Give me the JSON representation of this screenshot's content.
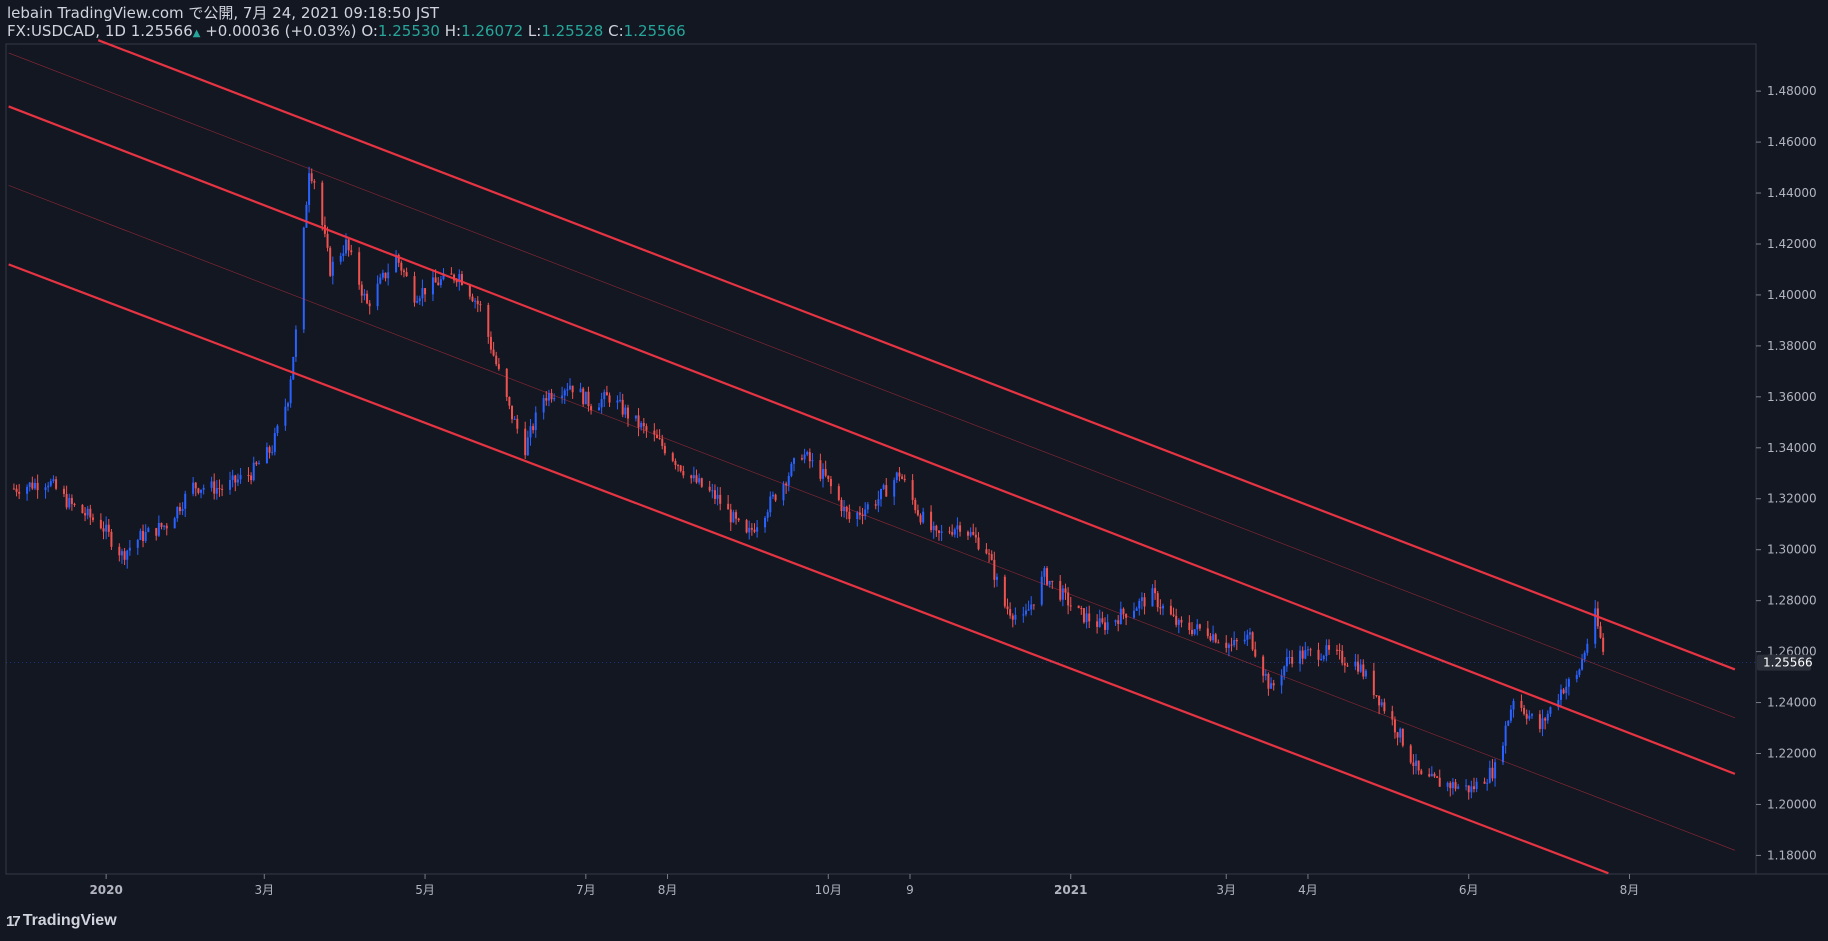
{
  "header": {
    "publish_line": "lebain TradingView.com で公開, 7月 24, 2021 09:18:50 JST",
    "symbol": "FX:USDCAD, 1D",
    "last": "1.25566",
    "change_arrow": "▲",
    "change": "+0.00036 (+0.03%)",
    "o_label": "O:",
    "o_value": "1.25530",
    "h_label": "H:",
    "h_value": "1.26072",
    "l_label": "L:",
    "l_value": "1.25528",
    "c_label": "C:",
    "c_value": "1.25566"
  },
  "footer": {
    "logo_text": "TradingView",
    "logo_mark": "17"
  },
  "colors": {
    "background": "#131722",
    "up_candle": "#2962ff",
    "down_candle": "#ef5350",
    "channel": "#f23645",
    "text": "#d1d4dc",
    "up_text": "#26a69a"
  },
  "chart_data": {
    "type": "candlestick",
    "symbol": "FX:USDCAD",
    "interval": "1D",
    "y_ticks": [
      "1.48000",
      "1.46000",
      "1.44000",
      "1.42000",
      "1.40000",
      "1.38000",
      "1.36000",
      "1.34000",
      "1.32000",
      "1.30000",
      "1.28000",
      "1.26000",
      "1.24000",
      "1.22000",
      "1.20000",
      "1.18000"
    ],
    "y_range": [
      1.1727,
      1.4985
    ],
    "x_ticks": [
      "2020",
      "3月",
      "5月",
      "7月",
      "8月",
      "10月",
      "9",
      "2021",
      "3月",
      "4月",
      "6月",
      "8月"
    ],
    "price_label": "1.25566",
    "series": [
      {
        "name": "close_path",
        "points": [
          [
            "2019-11-27",
            1.324
          ],
          [
            "2019-12-10",
            1.327
          ],
          [
            "2019-12-18",
            1.318
          ],
          [
            "2019-12-30",
            1.31
          ],
          [
            "2020-01-07",
            1.298
          ],
          [
            "2020-01-14",
            1.305
          ],
          [
            "2020-01-24",
            1.31
          ],
          [
            "2020-02-03",
            1.325
          ],
          [
            "2020-02-14",
            1.324
          ],
          [
            "2020-02-25",
            1.33
          ],
          [
            "2020-03-04",
            1.34
          ],
          [
            "2020-03-10",
            1.36
          ],
          [
            "2020-03-13",
            1.385
          ],
          [
            "2020-03-18",
            1.45
          ],
          [
            "2020-03-20",
            1.445
          ],
          [
            "2020-03-26",
            1.41
          ],
          [
            "2020-04-01",
            1.42
          ],
          [
            "2020-04-09",
            1.396
          ],
          [
            "2020-04-20",
            1.415
          ],
          [
            "2020-04-27",
            1.4
          ],
          [
            "2020-05-06",
            1.405
          ],
          [
            "2020-05-14",
            1.408
          ],
          [
            "2020-05-22",
            1.395
          ],
          [
            "2020-05-26",
            1.38
          ],
          [
            "2020-06-02",
            1.355
          ],
          [
            "2020-06-08",
            1.34
          ],
          [
            "2020-06-15",
            1.36
          ],
          [
            "2020-06-25",
            1.365
          ],
          [
            "2020-07-03",
            1.357
          ],
          [
            "2020-07-10",
            1.36
          ],
          [
            "2020-07-20",
            1.35
          ],
          [
            "2020-07-31",
            1.34
          ],
          [
            "2020-08-10",
            1.328
          ],
          [
            "2020-08-20",
            1.32
          ],
          [
            "2020-08-31",
            1.305
          ],
          [
            "2020-09-10",
            1.32
          ],
          [
            "2020-09-21",
            1.338
          ],
          [
            "2020-09-30",
            1.328
          ],
          [
            "2020-10-09",
            1.312
          ],
          [
            "2020-10-20",
            1.32
          ],
          [
            "2020-10-28",
            1.33
          ],
          [
            "2020-11-04",
            1.315
          ],
          [
            "2020-11-11",
            1.305
          ],
          [
            "2020-11-20",
            1.31
          ],
          [
            "2020-11-30",
            1.3
          ],
          [
            "2020-12-07",
            1.278
          ],
          [
            "2020-12-14",
            1.272
          ],
          [
            "2020-12-22",
            1.29
          ],
          [
            "2021-01-04",
            1.275
          ],
          [
            "2021-01-13",
            1.27
          ],
          [
            "2021-01-21",
            1.275
          ],
          [
            "2021-02-01",
            1.282
          ],
          [
            "2021-02-11",
            1.27
          ],
          [
            "2021-02-22",
            1.268
          ],
          [
            "2021-03-03",
            1.262
          ],
          [
            "2021-03-10",
            1.266
          ],
          [
            "2021-03-18",
            1.245
          ],
          [
            "2021-03-25",
            1.258
          ],
          [
            "2021-04-07",
            1.26
          ],
          [
            "2021-04-20",
            1.255
          ],
          [
            "2021-04-29",
            1.24
          ],
          [
            "2021-05-07",
            1.225
          ],
          [
            "2021-05-14",
            1.21
          ],
          [
            "2021-05-24",
            1.208
          ],
          [
            "2021-06-02",
            1.206
          ],
          [
            "2021-06-11",
            1.214
          ],
          [
            "2021-06-18",
            1.242
          ],
          [
            "2021-06-28",
            1.23
          ],
          [
            "2021-07-06",
            1.245
          ],
          [
            "2021-07-12",
            1.25
          ],
          [
            "2021-07-19",
            1.274
          ],
          [
            "2021-07-23",
            1.2557
          ]
        ]
      }
    ],
    "channel_lines": [
      {
        "name": "upper",
        "style": "solid",
        "start": [
          "2019-12-29",
          1.5
        ],
        "end": [
          "2021-09-10",
          1.253
        ]
      },
      {
        "name": "upper_mid",
        "style": "thin",
        "start": [
          "2019-11-25",
          1.495
        ],
        "end": [
          "2021-09-10",
          1.234
        ]
      },
      {
        "name": "middle",
        "style": "solid",
        "start": [
          "2019-11-25",
          1.474
        ],
        "end": [
          "2021-09-10",
          1.212
        ]
      },
      {
        "name": "lower_mid",
        "style": "thin",
        "start": [
          "2019-11-25",
          1.443
        ],
        "end": [
          "2021-09-10",
          1.182
        ]
      },
      {
        "name": "lower",
        "style": "solid",
        "start": [
          "2019-11-25",
          1.412
        ],
        "end": [
          "2021-07-24",
          1.173
        ]
      }
    ]
  }
}
